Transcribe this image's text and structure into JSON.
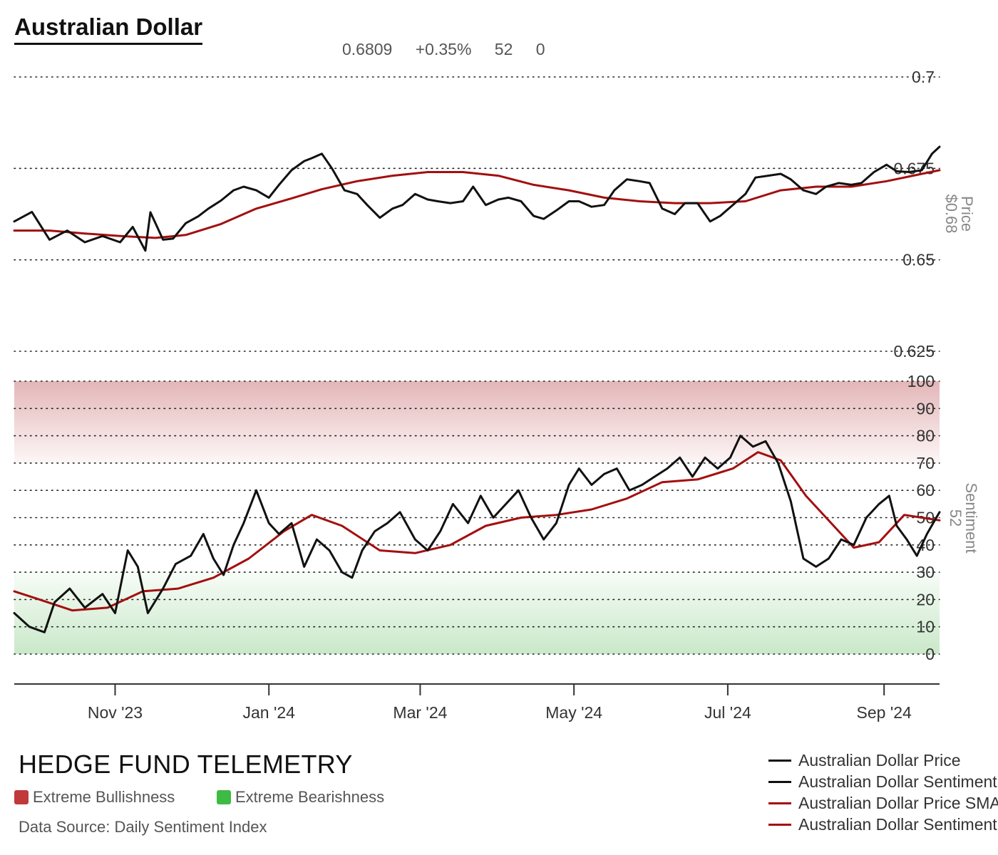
{
  "header": {
    "title": "Australian Dollar",
    "stats": [
      "0.6809",
      "+0.35%",
      "52",
      "0"
    ]
  },
  "footer": {
    "brand": "HEDGE FUND TELEMETRY",
    "zones": [
      {
        "label": "Extreme Bullishness",
        "color": "#c0393b"
      },
      {
        "label": "Extreme Bearishness",
        "color": "#3dbb44"
      }
    ],
    "source": "Data Source: Daily Sentiment Index"
  },
  "legend": [
    {
      "label": "Australian Dollar Price",
      "color": "#111111"
    },
    {
      "label": "Australian Dollar Sentiment",
      "color": "#111111"
    },
    {
      "label": "Australian Dollar Price SMA",
      "color": "#a30f0f"
    },
    {
      "label": "Australian Dollar Sentiment SMA",
      "color": "#a30f0f"
    }
  ],
  "chart_data": {
    "type": "line",
    "x_ticks": [
      "Nov '23",
      "Jan '24",
      "Mar '24",
      "May '24",
      "Jul '24",
      "Sep '24"
    ],
    "x_tick_dates": [
      "2023-11-01",
      "2024-01-01",
      "2024-03-01",
      "2024-05-01",
      "2024-07-01",
      "2024-09-01"
    ],
    "x_range": [
      "2023-09-22",
      "2024-09-23"
    ],
    "price_panel": {
      "ylabel": "Price",
      "current_label": "$0.68",
      "yticks": [
        0.625,
        0.65,
        0.675,
        0.7
      ],
      "ylim": [
        0.625,
        0.7
      ],
      "price_series": {
        "color": "#111111",
        "points": [
          [
            "2023-09-22",
            0.6605
          ],
          [
            "2023-09-29",
            0.6631
          ],
          [
            "2023-10-06",
            0.6555
          ],
          [
            "2023-10-13",
            0.658
          ],
          [
            "2023-10-20",
            0.6548
          ],
          [
            "2023-10-27",
            0.6565
          ],
          [
            "2023-11-03",
            0.6548
          ],
          [
            "2023-11-08",
            0.659
          ],
          [
            "2023-11-13",
            0.6525
          ],
          [
            "2023-11-15",
            0.663
          ],
          [
            "2023-11-20",
            0.6555
          ],
          [
            "2023-11-24",
            0.6558
          ],
          [
            "2023-11-29",
            0.66
          ],
          [
            "2023-12-04",
            0.6619
          ],
          [
            "2023-12-08",
            0.664
          ],
          [
            "2023-12-13",
            0.6662
          ],
          [
            "2023-12-18",
            0.669
          ],
          [
            "2023-12-22",
            0.67
          ],
          [
            "2023-12-27",
            0.669
          ],
          [
            "2024-01-01",
            0.667
          ],
          [
            "2024-01-05",
            0.6705
          ],
          [
            "2024-01-10",
            0.6745
          ],
          [
            "2024-01-15",
            0.677
          ],
          [
            "2024-01-18",
            0.6778
          ],
          [
            "2024-01-22",
            0.679
          ],
          [
            "2024-01-26",
            0.675
          ],
          [
            "2024-01-31",
            0.669
          ],
          [
            "2024-02-05",
            0.668
          ],
          [
            "2024-02-09",
            0.665
          ],
          [
            "2024-02-14",
            0.6615
          ],
          [
            "2024-02-19",
            0.664
          ],
          [
            "2024-02-23",
            0.665
          ],
          [
            "2024-02-28",
            0.668
          ],
          [
            "2024-03-04",
            0.6665
          ],
          [
            "2024-03-08",
            0.666
          ],
          [
            "2024-03-13",
            0.6655
          ],
          [
            "2024-03-18",
            0.666
          ],
          [
            "2024-03-22",
            0.67
          ],
          [
            "2024-03-27",
            0.665
          ],
          [
            "2024-04-01",
            0.6665
          ],
          [
            "2024-04-05",
            0.667
          ],
          [
            "2024-04-10",
            0.666
          ],
          [
            "2024-04-15",
            0.662
          ],
          [
            "2024-04-19",
            0.6612
          ],
          [
            "2024-04-24",
            0.6635
          ],
          [
            "2024-04-29",
            0.666
          ],
          [
            "2024-05-03",
            0.666
          ],
          [
            "2024-05-08",
            0.6645
          ],
          [
            "2024-05-13",
            0.665
          ],
          [
            "2024-05-17",
            0.669
          ],
          [
            "2024-05-22",
            0.672
          ],
          [
            "2024-05-27",
            0.6715
          ],
          [
            "2024-05-31",
            0.671
          ],
          [
            "2024-06-05",
            0.664
          ],
          [
            "2024-06-10",
            0.6625
          ],
          [
            "2024-06-14",
            0.6655
          ],
          [
            "2024-06-19",
            0.6655
          ],
          [
            "2024-06-24",
            0.6605
          ],
          [
            "2024-06-28",
            0.662
          ],
          [
            "2024-07-03",
            0.665
          ],
          [
            "2024-07-08",
            0.668
          ],
          [
            "2024-07-12",
            0.6725
          ],
          [
            "2024-07-17",
            0.673
          ],
          [
            "2024-07-22",
            0.6735
          ],
          [
            "2024-07-26",
            0.672
          ],
          [
            "2024-07-31",
            0.669
          ],
          [
            "2024-08-05",
            0.668
          ],
          [
            "2024-08-09",
            0.67
          ],
          [
            "2024-08-14",
            0.671
          ],
          [
            "2024-08-19",
            0.6705
          ],
          [
            "2024-08-23",
            0.671
          ],
          [
            "2024-08-28",
            0.674
          ],
          [
            "2024-09-02",
            0.676
          ],
          [
            "2024-09-06",
            0.6742
          ],
          [
            "2024-09-11",
            0.674
          ],
          [
            "2024-09-16",
            0.6745
          ],
          [
            "2024-09-20",
            0.679
          ],
          [
            "2024-09-23",
            0.6809
          ]
        ]
      },
      "price_sma": {
        "color": "#a30f0f",
        "points": [
          [
            "2023-09-22",
            0.658
          ],
          [
            "2023-10-06",
            0.658
          ],
          [
            "2023-10-20",
            0.6572
          ],
          [
            "2023-11-03",
            0.6565
          ],
          [
            "2023-11-17",
            0.656
          ],
          [
            "2023-11-29",
            0.6568
          ],
          [
            "2023-12-13",
            0.6598
          ],
          [
            "2023-12-27",
            0.664
          ],
          [
            "2024-01-10",
            0.6668
          ],
          [
            "2024-01-22",
            0.6693
          ],
          [
            "2024-02-05",
            0.6715
          ],
          [
            "2024-02-19",
            0.673
          ],
          [
            "2024-03-04",
            0.674
          ],
          [
            "2024-03-18",
            0.674
          ],
          [
            "2024-04-01",
            0.673
          ],
          [
            "2024-04-15",
            0.6705
          ],
          [
            "2024-04-29",
            0.669
          ],
          [
            "2024-05-13",
            0.667
          ],
          [
            "2024-05-27",
            0.666
          ],
          [
            "2024-06-10",
            0.6655
          ],
          [
            "2024-06-24",
            0.6655
          ],
          [
            "2024-07-08",
            0.666
          ],
          [
            "2024-07-22",
            0.669
          ],
          [
            "2024-08-05",
            0.67
          ],
          [
            "2024-08-19",
            0.67
          ],
          [
            "2024-09-02",
            0.6715
          ],
          [
            "2024-09-16",
            0.6735
          ],
          [
            "2024-09-23",
            0.6745
          ]
        ]
      }
    },
    "sentiment_panel": {
      "ylabel": "Sentiment",
      "current_label": "52",
      "yticks": [
        0,
        10,
        20,
        30,
        40,
        50,
        60,
        70,
        80,
        90,
        100
      ],
      "ylim": [
        0,
        100
      ],
      "extreme_bullish_band": [
        70,
        100
      ],
      "extreme_bearish_band": [
        0,
        30
      ],
      "sentiment_series": {
        "color": "#111111",
        "points": [
          [
            "2023-09-22",
            15
          ],
          [
            "2023-09-28",
            10
          ],
          [
            "2023-10-04",
            8
          ],
          [
            "2023-10-08",
            19
          ],
          [
            "2023-10-14",
            24
          ],
          [
            "2023-10-20",
            17
          ],
          [
            "2023-10-27",
            22
          ],
          [
            "2023-11-01",
            15
          ],
          [
            "2023-11-06",
            38
          ],
          [
            "2023-11-10",
            32
          ],
          [
            "2023-11-14",
            15
          ],
          [
            "2023-11-20",
            24
          ],
          [
            "2023-11-25",
            33
          ],
          [
            "2023-12-01",
            36
          ],
          [
            "2023-12-06",
            44
          ],
          [
            "2023-12-10",
            35
          ],
          [
            "2023-12-14",
            29
          ],
          [
            "2023-12-18",
            40
          ],
          [
            "2023-12-22",
            48
          ],
          [
            "2023-12-27",
            60
          ],
          [
            "2024-01-01",
            48
          ],
          [
            "2024-01-05",
            44
          ],
          [
            "2024-01-10",
            48
          ],
          [
            "2024-01-15",
            32
          ],
          [
            "2024-01-20",
            42
          ],
          [
            "2024-01-25",
            38
          ],
          [
            "2024-01-30",
            30
          ],
          [
            "2024-02-03",
            28
          ],
          [
            "2024-02-07",
            38
          ],
          [
            "2024-02-12",
            45
          ],
          [
            "2024-02-17",
            48
          ],
          [
            "2024-02-22",
            52
          ],
          [
            "2024-02-28",
            42
          ],
          [
            "2024-03-04",
            38
          ],
          [
            "2024-03-09",
            45
          ],
          [
            "2024-03-14",
            55
          ],
          [
            "2024-03-20",
            48
          ],
          [
            "2024-03-25",
            58
          ],
          [
            "2024-03-30",
            50
          ],
          [
            "2024-04-04",
            55
          ],
          [
            "2024-04-09",
            60
          ],
          [
            "2024-04-14",
            50
          ],
          [
            "2024-04-19",
            42
          ],
          [
            "2024-04-24",
            48
          ],
          [
            "2024-04-29",
            62
          ],
          [
            "2024-05-03",
            68
          ],
          [
            "2024-05-08",
            62
          ],
          [
            "2024-05-13",
            66
          ],
          [
            "2024-05-18",
            68
          ],
          [
            "2024-05-23",
            60
          ],
          [
            "2024-05-28",
            62
          ],
          [
            "2024-06-02",
            65
          ],
          [
            "2024-06-07",
            68
          ],
          [
            "2024-06-12",
            72
          ],
          [
            "2024-06-17",
            65
          ],
          [
            "2024-06-22",
            72
          ],
          [
            "2024-06-27",
            68
          ],
          [
            "2024-07-02",
            72
          ],
          [
            "2024-07-06",
            80
          ],
          [
            "2024-07-11",
            76
          ],
          [
            "2024-07-16",
            78
          ],
          [
            "2024-07-21",
            70
          ],
          [
            "2024-07-26",
            56
          ],
          [
            "2024-07-31",
            35
          ],
          [
            "2024-08-05",
            32
          ],
          [
            "2024-08-10",
            35
          ],
          [
            "2024-08-15",
            42
          ],
          [
            "2024-08-20",
            40
          ],
          [
            "2024-08-25",
            50
          ],
          [
            "2024-08-30",
            55
          ],
          [
            "2024-09-03",
            58
          ],
          [
            "2024-09-06",
            47
          ],
          [
            "2024-09-10",
            42
          ],
          [
            "2024-09-14",
            36
          ],
          [
            "2024-09-18",
            44
          ],
          [
            "2024-09-23",
            52
          ]
        ]
      },
      "sentiment_sma": {
        "color": "#a30f0f",
        "points": [
          [
            "2023-09-22",
            23
          ],
          [
            "2023-10-02",
            20
          ],
          [
            "2023-10-15",
            16
          ],
          [
            "2023-10-29",
            17
          ],
          [
            "2023-11-12",
            23
          ],
          [
            "2023-11-26",
            24
          ],
          [
            "2023-12-10",
            28
          ],
          [
            "2023-12-24",
            35
          ],
          [
            "2024-01-07",
            45
          ],
          [
            "2024-01-18",
            51
          ],
          [
            "2024-01-30",
            47
          ],
          [
            "2024-02-14",
            38
          ],
          [
            "2024-02-28",
            37
          ],
          [
            "2024-03-13",
            40
          ],
          [
            "2024-03-27",
            47
          ],
          [
            "2024-04-10",
            50
          ],
          [
            "2024-04-24",
            51
          ],
          [
            "2024-05-08",
            53
          ],
          [
            "2024-05-22",
            57
          ],
          [
            "2024-06-05",
            63
          ],
          [
            "2024-06-19",
            64
          ],
          [
            "2024-07-03",
            68
          ],
          [
            "2024-07-13",
            74
          ],
          [
            "2024-07-22",
            71
          ],
          [
            "2024-08-01",
            58
          ],
          [
            "2024-08-12",
            47
          ],
          [
            "2024-08-20",
            39
          ],
          [
            "2024-08-30",
            41
          ],
          [
            "2024-09-09",
            51
          ],
          [
            "2024-09-23",
            49
          ]
        ]
      }
    }
  }
}
